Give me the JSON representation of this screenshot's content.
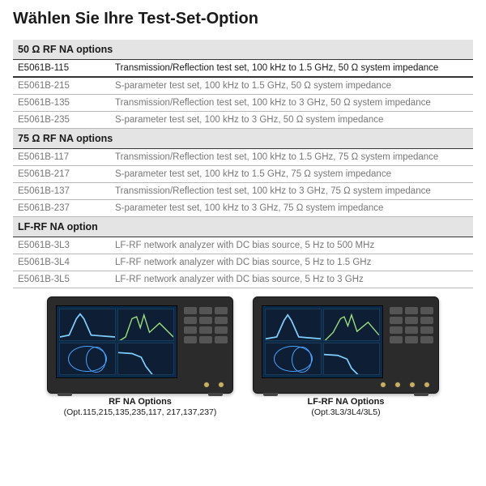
{
  "title": "Wählen Sie Ihre Test-Set-Option",
  "sections": [
    {
      "header": "50 Ω RF NA options",
      "rows": [
        {
          "code": "E5061B-115",
          "desc": "Transmission/Reflection test set, 100 kHz to 1.5 GHz, 50 Ω system impedance",
          "highlight": true
        },
        {
          "code": "E5061B-215",
          "desc": "S-parameter test set, 100 kHz to 1.5 GHz, 50 Ω system impedance"
        },
        {
          "code": "E5061B-135",
          "desc": "Transmission/Reflection test set, 100 kHz to 3 GHz, 50 Ω system impedance"
        },
        {
          "code": "E5061B-235",
          "desc": "S-parameter test set, 100 kHz to 3 GHz, 50 Ω system impedance"
        }
      ]
    },
    {
      "header": "75 Ω RF NA options",
      "rows": [
        {
          "code": "E5061B-117",
          "desc": "Transmission/Reflection test set, 100 kHz to 1.5 GHz, 75 Ω system impedance"
        },
        {
          "code": "E5061B-217",
          "desc": "S-parameter test set, 100 kHz to 1.5 GHz, 75 Ω system impedance"
        },
        {
          "code": "E5061B-137",
          "desc": "Transmission/Reflection test set, 100 kHz to 3 GHz, 75 Ω system impedance"
        },
        {
          "code": "E5061B-237",
          "desc": "S-parameter test set, 100 kHz to 3 GHz, 75 Ω system impedance"
        }
      ]
    },
    {
      "header": "LF-RF NA option",
      "rows": [
        {
          "code": "E5061B-3L3",
          "desc": "LF-RF network analyzer with DC bias source, 5 Hz to 500 MHz"
        },
        {
          "code": "E5061B-3L4",
          "desc": "LF-RF network analyzer with DC bias source, 5 Hz to 1.5 GHz"
        },
        {
          "code": "E5061B-3L5",
          "desc": "LF-RF network analyzer with DC bias source, 5 Hz to 3 GHz"
        }
      ]
    }
  ],
  "figures": {
    "left": {
      "caption": "RF NA Options",
      "sub": "(Opt.115,215,135,235,117, 217,137,237)"
    },
    "right": {
      "caption": "LF-RF NA Options",
      "sub": "(Opt.3L3/3L4/3L5)"
    }
  },
  "style": {
    "title_fontsize": 20,
    "body_fontsize": 11.5,
    "section_bg": "#e4e4e4",
    "row_border": "#b8b8b8",
    "highlight_border": "#333333",
    "muted_text": "#777777",
    "device_bg": "#2b2b2b",
    "screen_bg": "#0a2a4a",
    "trace_color": "#7fd0ff"
  }
}
